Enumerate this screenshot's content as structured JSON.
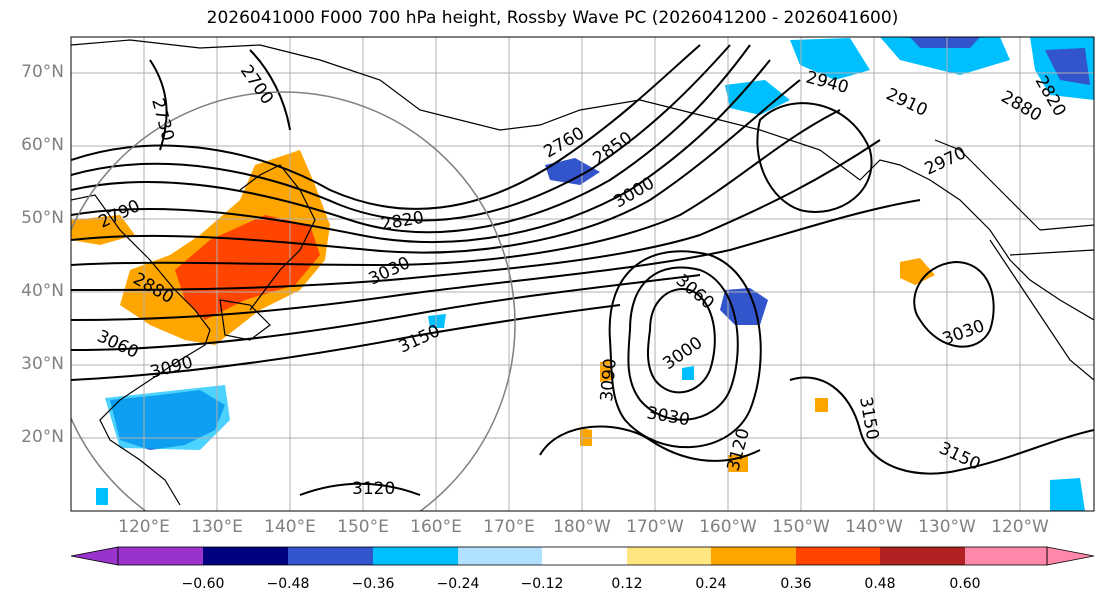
{
  "title": "2026041000 F000 700 hPa height, Rossby Wave PC (2026041200 - 2026041600)",
  "map": {
    "projection": "equirectangular",
    "lon_range": [
      110,
      250
    ],
    "lat_range": [
      10,
      75
    ],
    "lat_labels": [
      "70°N",
      "60°N",
      "50°N",
      "40°N",
      "30°N",
      "20°N"
    ],
    "lon_labels": [
      "120°E",
      "130°E",
      "140°E",
      "150°E",
      "160°E",
      "170°E",
      "180°W",
      "170°W",
      "160°W",
      "150°W",
      "140°W",
      "130°W",
      "120°W"
    ],
    "grid": true,
    "contour_labels": [
      "2730",
      "2700",
      "2790",
      "2880",
      "3060",
      "3090",
      "2820",
      "3030",
      "3150",
      "2760",
      "2850",
      "3000",
      "2940",
      "2910",
      "2880",
      "2820",
      "3060",
      "3000",
      "3030",
      "3090",
      "3120",
      "3150",
      "3030",
      "3150",
      "3120",
      "2970"
    ]
  },
  "colorbar": {
    "tick_labels": [
      "−0.60",
      "−0.48",
      "−0.36",
      "−0.24",
      "−0.12",
      "0.12",
      "0.24",
      "0.36",
      "0.48",
      "0.60"
    ],
    "colors": [
      "#9933cc",
      "#000080",
      "#3355cc",
      "#00bfff",
      "#b0e0ff",
      "#ffffff",
      "#ffe680",
      "#ffa500",
      "#ff4500",
      "#b22222",
      "#ff88aa"
    ]
  }
}
